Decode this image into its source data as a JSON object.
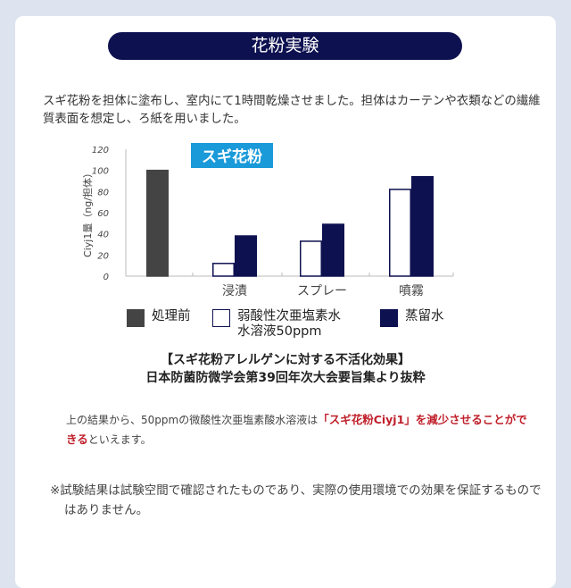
{
  "title": "花粉実験",
  "intro": "スギ花粉を担体に塗布し、室内にて1時間乾燥させました。担体はカーテンや衣類などの繊維質表面を想定し、ろ紙を用いました。",
  "chart_data": {
    "type": "bar",
    "title": "スギ花粉",
    "ylabel": "Ciyj1量（ng/担体）",
    "ylim": [
      0,
      120
    ],
    "yticks": [
      0,
      20,
      40,
      60,
      80,
      100,
      120
    ],
    "categories": [
      "",
      "浸漬",
      "スプレー",
      "噴霧"
    ],
    "series": [
      {
        "name": "処理前",
        "color": "#444444",
        "values": [
          100,
          null,
          null,
          null
        ]
      },
      {
        "name": "弱酸性次亜塩素水水溶液50ppm",
        "color": "#ffffff",
        "values": [
          null,
          12,
          33,
          82
        ]
      },
      {
        "name": "蒸留水",
        "color": "#0e1150",
        "values": [
          null,
          38,
          49,
          94
        ]
      }
    ],
    "title_color": "#1a9ad9",
    "grid": false,
    "legend_position": "bottom"
  },
  "legend": {
    "before": "処理前",
    "solution_line1": "弱酸性次亜塩素水",
    "solution_line2": "水溶液50ppm",
    "water": "蒸留水"
  },
  "caption": {
    "line1": "【スギ花粉アレルゲンに対する不活化効果】",
    "line2": "日本防菌防微学会第39回年次大会要旨集より抜粋"
  },
  "result": {
    "prefix": "上の結果から、50ppmの微酸性次亜塩素酸水溶液は",
    "highlight": "「スギ花粉Ciyj1」を減少させることができる",
    "suffix": "といえます。"
  },
  "note": "※試験結果は試験空間で確認されたものであり、実際の使用環境での効果を保証するものではありません。"
}
